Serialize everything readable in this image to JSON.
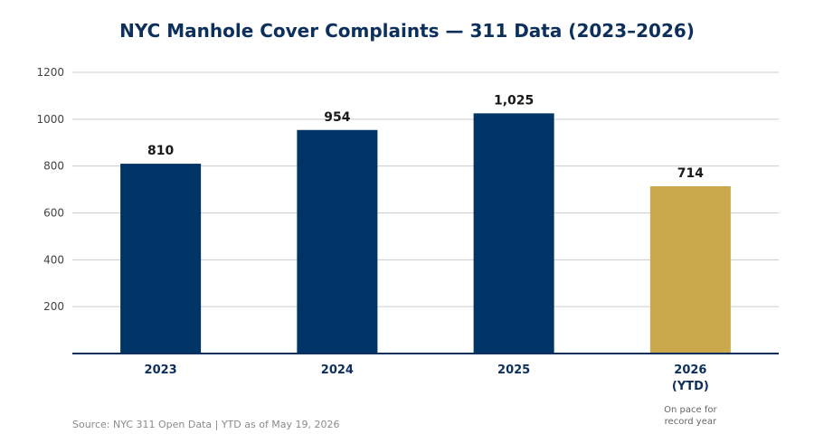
{
  "chart_data": {
    "type": "bar",
    "title": "NYC Manhole Cover Complaints — 311 Data (2023–2026)",
    "categories": [
      "2023",
      "2024",
      "2025",
      "2026"
    ],
    "category_sublabels": [
      "",
      "",
      "",
      "(YTD)"
    ],
    "values": [
      810,
      954,
      1025,
      714
    ],
    "value_labels": [
      "810",
      "954",
      "1,025",
      "714"
    ],
    "bar_colors": [
      "#003366",
      "#003366",
      "#003366",
      "#c9a94b"
    ],
    "yticks": [
      "200",
      "400",
      "600",
      "800",
      "1000",
      "1200"
    ],
    "ylim": [
      0,
      1200
    ],
    "grid": true,
    "annotations": [
      {
        "category": "2026",
        "lines": [
          "On pace for",
          "record year"
        ]
      }
    ],
    "source": "Source: NYC 311 Open Data  |  YTD as of May 19, 2026"
  },
  "colors": {
    "primary": "#003366",
    "highlight": "#c9a94b",
    "title": "#0d2f5c"
  }
}
